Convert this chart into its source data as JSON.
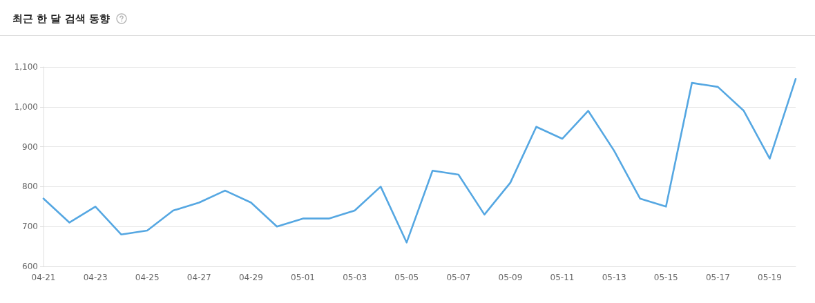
{
  "chart_data": {
    "type": "line",
    "title": "최근 한 달 검색 동향",
    "categories": [
      "04-21",
      null,
      "04-23",
      null,
      "04-25",
      null,
      "04-27",
      null,
      "04-29",
      null,
      "05-01",
      null,
      "05-03",
      null,
      "05-05",
      null,
      "05-07",
      null,
      "05-09",
      null,
      "05-11",
      null,
      "05-13",
      null,
      "05-15",
      null,
      "05-17",
      null,
      "05-19",
      null
    ],
    "series": [
      {
        "color": "#55a7e2",
        "values": [
          770,
          710,
          750,
          680,
          690,
          740,
          760,
          790,
          760,
          700,
          720,
          720,
          740,
          800,
          660,
          840,
          830,
          730,
          810,
          950,
          920,
          990,
          890,
          770,
          750,
          1060,
          1050,
          990,
          870,
          1070
        ]
      }
    ],
    "ylim": [
      600,
      1100
    ],
    "yticks": [
      600,
      700,
      800,
      900,
      {
        "value": 1000,
        "label": "1,000"
      },
      {
        "value": 1100,
        "label": "1,100"
      }
    ],
    "grid": "y",
    "marker": "none",
    "line_style": "solid"
  }
}
